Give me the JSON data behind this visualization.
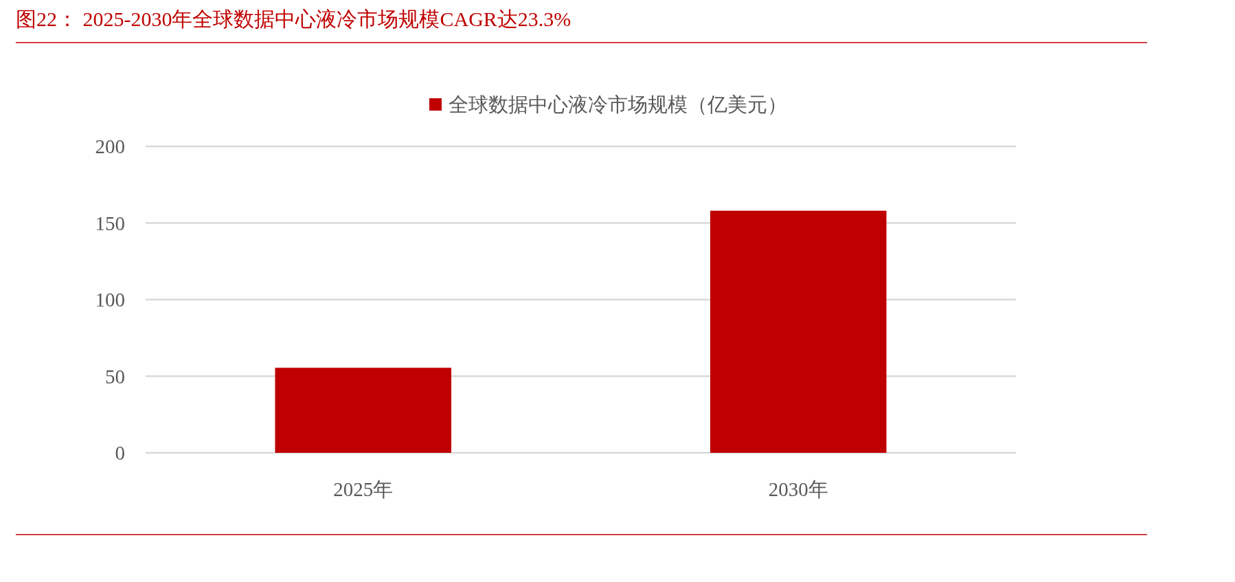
{
  "chart_data": {
    "type": "bar",
    "title": "图22：  2025-2030年全球数据中心液冷市场规模CAGR达23.3%",
    "categories": [
      "2025年",
      "2030年"
    ],
    "series": [
      {
        "name": "全球数据中心液冷市场规模（亿美元）",
        "color": "#c00000",
        "values": [
          55.5,
          158
        ]
      }
    ],
    "ylim": [
      0,
      200
    ],
    "yticks": [
      0,
      50,
      100,
      150,
      200
    ],
    "grid": "y",
    "legend": "top"
  }
}
